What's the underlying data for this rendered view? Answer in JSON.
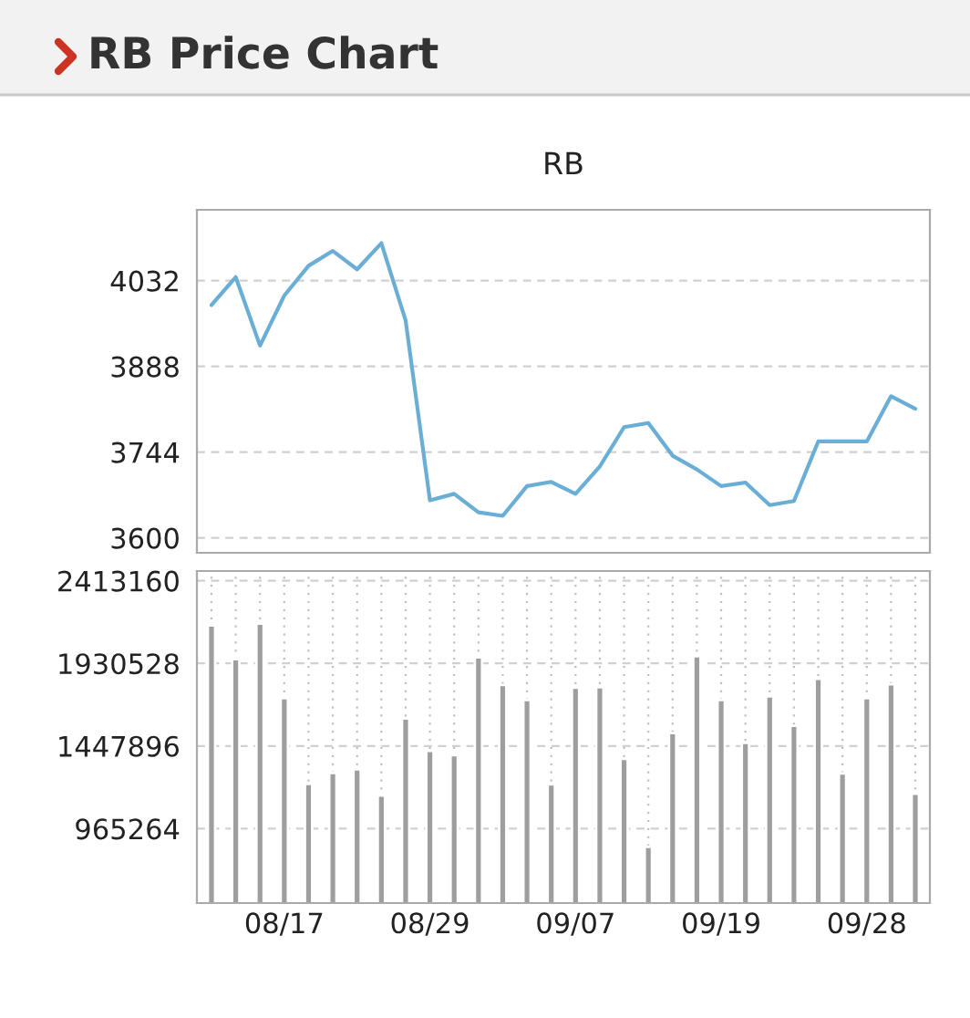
{
  "chart_data": [
    {
      "type": "line",
      "title": "RB Price Chart",
      "subtitle": "RB",
      "categories": [
        null,
        null,
        null,
        null,
        null,
        null,
        null,
        null,
        null,
        null,
        null,
        null,
        null,
        null,
        null,
        null,
        null,
        null,
        null,
        null,
        null,
        null,
        null,
        null,
        null,
        null,
        null,
        null,
        null,
        null
      ],
      "series": [
        {
          "color": "#6aaed6",
          "values": [
            3991,
            4038,
            3923,
            4007,
            4057,
            4082,
            4051,
            4095,
            3965,
            3663,
            3674,
            3643,
            3637,
            3687,
            3694,
            3674,
            3720,
            3786,
            3793,
            3738,
            3715,
            3687,
            3693,
            3655,
            3662,
            3762,
            3762,
            3762,
            3838,
            3817
          ]
        }
      ],
      "ylim": [
        3575,
        4151
      ],
      "yticks": [
        3600,
        3744,
        3888,
        4032
      ],
      "grid": "y",
      "tick_labels": "y"
    },
    {
      "type": "bar",
      "categories": [
        null,
        null,
        null,
        "08/17",
        null,
        null,
        null,
        null,
        null,
        "08/29",
        null,
        null,
        null,
        null,
        null,
        "09/07",
        null,
        null,
        null,
        null,
        null,
        "09/19",
        null,
        null,
        null,
        null,
        null,
        "09/28",
        null,
        null
      ],
      "series": [
        {
          "color": "#9e9e9e",
          "values": [
            2152000,
            1955600,
            2163000,
            1727000,
            1226000,
            1290600,
            1312000,
            1158000,
            1609000,
            1419000,
            1394000,
            1966000,
            1805000,
            1716000,
            1223000,
            1788000,
            1791000,
            1373000,
            858000,
            1523000,
            1973000,
            1716000,
            1466000,
            1738000,
            1566000,
            1841000,
            1287000,
            1727000,
            1809000,
            1169000
          ]
        }
      ],
      "ylim": [
        530000,
        2470000
      ],
      "yticks": [
        965264,
        1447896,
        1930528,
        2413160
      ],
      "grid": true
    }
  ]
}
